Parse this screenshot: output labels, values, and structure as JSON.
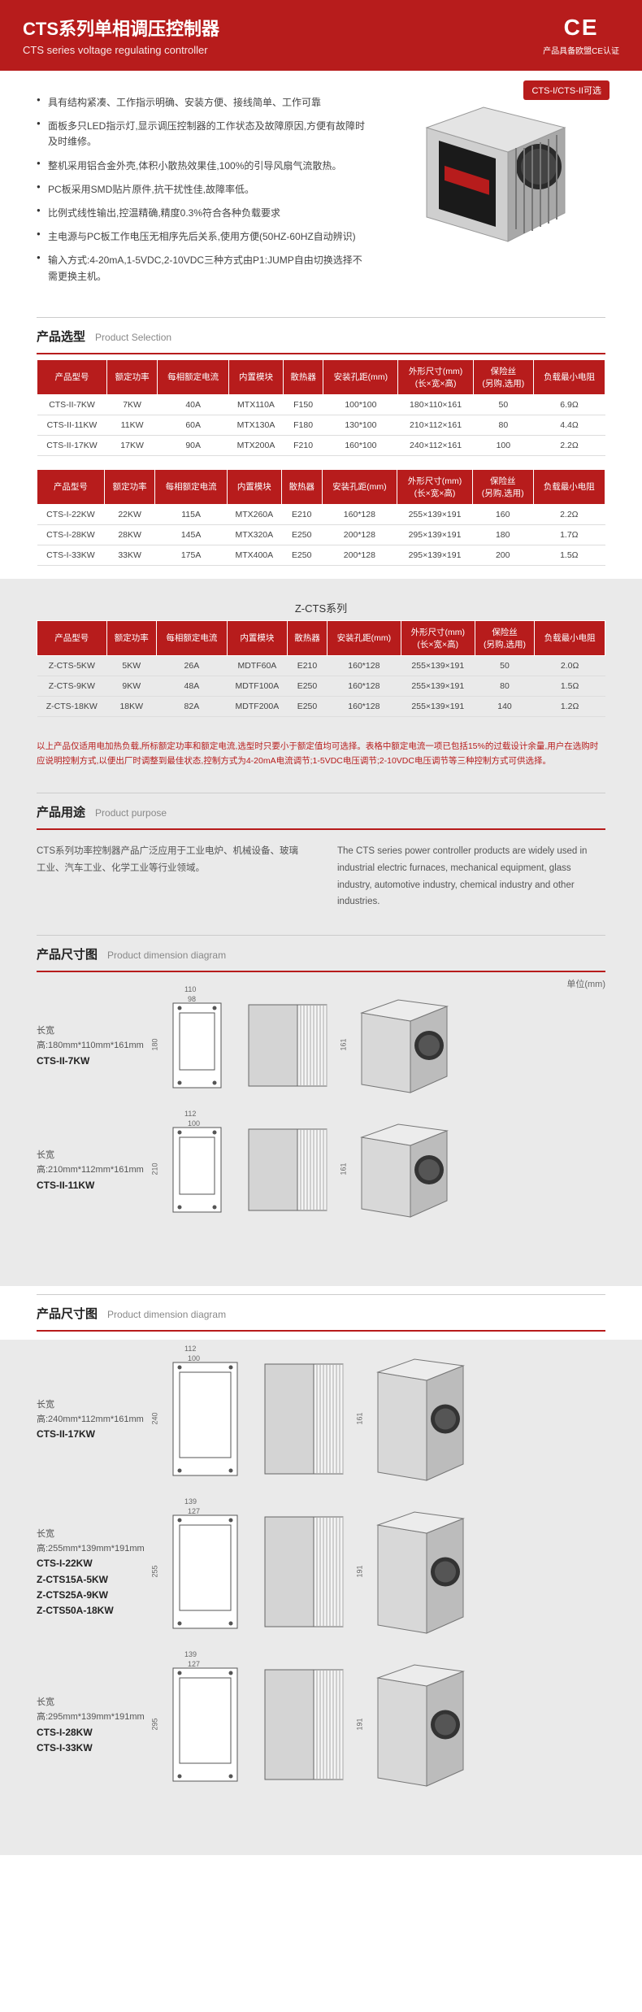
{
  "header": {
    "title_zh": "CTS系列单相调压控制器",
    "title_en": "CTS series voltage regulating controller",
    "ce": "CE",
    "ce_label": "产品具备欧盟CE认证"
  },
  "badge": "CTS-I/CTS-II可选",
  "features": [
    "具有结构紧凑、工作指示明确、安装方便、接线简单、工作可靠",
    "面板多只LED指示灯,显示调压控制器的工作状态及故障原因,方便有故障时及时维修。",
    "整机采用铝合金外壳,体积小散热效果佳,100%的引导风扇气流散热。",
    "PC板采用SMD贴片原件,抗干扰性佳,故障率低。",
    "比例式线性输出,控温精确,精度0.3%符合各种负载要求",
    "主电源与PC板工作电压无相序先后关系,使用方便(50HZ-60HZ自动辨识)",
    "输入方式:4-20mA,1-5VDC,2-10VDC三种方式由P1:JUMP自由切换选择不需更换主机。"
  ],
  "sections": {
    "selection": {
      "zh": "产品选型",
      "en": "Product Selection"
    },
    "purpose": {
      "zh": "产品用途",
      "en": "Product purpose"
    },
    "dimension": {
      "zh": "产品尺寸图",
      "en": "Product dimension diagram"
    }
  },
  "table_headers": {
    "t1": [
      "产品型号",
      "额定功率",
      "每相额定电流",
      "内置模块",
      "散热器",
      "安装孔距(mm)",
      "外形尺寸(mm)\n(长×宽×高)",
      "保险丝\n(另购,选用)",
      "负载最小电阻"
    ],
    "z": [
      "产品型号",
      "额定功率",
      "每相额定电流",
      "内置模块",
      "散热器",
      "安装孔距(mm)",
      "外形尺寸(mm)\n(长×宽×高)",
      "保险丝\n(另购,选用)",
      "负载最小电阻"
    ]
  },
  "table1": [
    [
      "CTS-II-7KW",
      "7KW",
      "40A",
      "MTX110A",
      "F150",
      "100*100",
      "180×110×161",
      "50",
      "6.9Ω"
    ],
    [
      "CTS-II-11KW",
      "11KW",
      "60A",
      "MTX130A",
      "F180",
      "130*100",
      "210×112×161",
      "80",
      "4.4Ω"
    ],
    [
      "CTS-II-17KW",
      "17KW",
      "90A",
      "MTX200A",
      "F210",
      "160*100",
      "240×112×161",
      "100",
      "2.2Ω"
    ]
  ],
  "table2": [
    [
      "CTS-I-22KW",
      "22KW",
      "115A",
      "MTX260A",
      "E210",
      "160*128",
      "255×139×191",
      "160",
      "2.2Ω"
    ],
    [
      "CTS-I-28KW",
      "28KW",
      "145A",
      "MTX320A",
      "E250",
      "200*128",
      "295×139×191",
      "180",
      "1.7Ω"
    ],
    [
      "CTS-I-33KW",
      "33KW",
      "175A",
      "MTX400A",
      "E250",
      "200*128",
      "295×139×191",
      "200",
      "1.5Ω"
    ]
  ],
  "z_title": "Z-CTS系列",
  "tableZ": [
    [
      "Z-CTS-5KW",
      "5KW",
      "26A",
      "MDTF60A",
      "E210",
      "160*128",
      "255×139×191",
      "50",
      "2.0Ω"
    ],
    [
      "Z-CTS-9KW",
      "9KW",
      "48A",
      "MDTF100A",
      "E250",
      "160*128",
      "255×139×191",
      "80",
      "1.5Ω"
    ],
    [
      "Z-CTS-18KW",
      "18KW",
      "82A",
      "MDTF200A",
      "E250",
      "160*128",
      "255×139×191",
      "140",
      "1.2Ω"
    ]
  ],
  "note": "以上产品仅适用电加热负载,所标额定功率和额定电流,选型时只要小于额定值均可选择。表格中额定电流一项已包括15%的过载设计余量,用户在选购时应说明控制方式,以便出厂时调整到最佳状态,控制方式为4-20mA电流调节;1-5VDC电压调节;2-10VDC电压调节等三种控制方式可供选择。",
  "purpose": {
    "zh": "CTS系列功率控制器产品广泛应用于工业电炉、机械设备、玻璃工业、汽车工业、化学工业等行业领域。",
    "en": "The CTS series power controller products are widely used in industrial electric furnaces, mechanical equipment, glass industry, automotive industry, chemical industry and other industries."
  },
  "unit": "单位(mm)",
  "dims": [
    {
      "label": "长宽高:180mm*110mm*161mm",
      "model": "CTS-II-7KW",
      "w": "110",
      "w2": "98",
      "h": "180",
      "h2": "160",
      "side": "161"
    },
    {
      "label": "长宽高:210mm*112mm*161mm",
      "model": "CTS-II-11KW",
      "w": "112",
      "w2": "100",
      "h": "210",
      "h2": "190",
      "side": "161"
    }
  ],
  "dims2": [
    {
      "label": "长宽高:240mm*112mm*161mm",
      "model": "CTS-II-17KW",
      "w": "112",
      "w2": "100",
      "h": "240",
      "h2": "160",
      "side": "161"
    },
    {
      "label": "长宽高:255mm*139mm*191mm",
      "models": [
        "CTS-I-22KW",
        "Z-CTS15A-5KW",
        "Z-CTS25A-9KW",
        "Z-CTS50A-18KW"
      ],
      "w": "139",
      "w2": "127",
      "h": "255",
      "h2": "225",
      "side": "191"
    },
    {
      "label": "长宽高:295mm*139mm*191mm",
      "models": [
        "CTS-I-28KW",
        "CTS-I-33KW"
      ],
      "w": "139",
      "w2": "127",
      "h": "295",
      "h2": "265",
      "side": "191"
    }
  ]
}
